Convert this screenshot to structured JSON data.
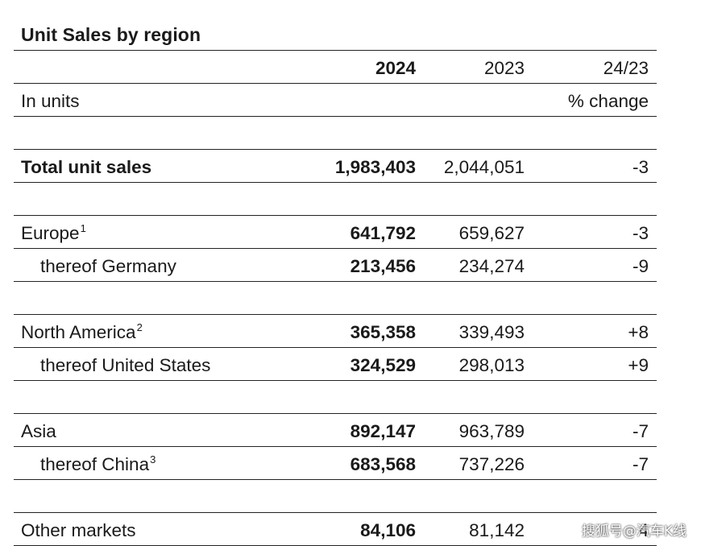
{
  "title": "Unit Sales by region",
  "header": {
    "col_2024": "2024",
    "col_2023": "2023",
    "col_change": "24/23",
    "units_label": "In units",
    "change_label": "% change"
  },
  "rows": [
    {
      "label": "Total unit sales",
      "v2024": "1,983,403",
      "v2023": "2,044,051",
      "change": "-3",
      "sup": ""
    },
    {
      "label": "Europe",
      "sup": "1",
      "v2024": "641,792",
      "v2023": "659,627",
      "change": "-3"
    },
    {
      "label": "thereof Germany",
      "sup": "",
      "v2024": "213,456",
      "v2023": "234,274",
      "change": "-9"
    },
    {
      "label": "North America",
      "sup": "2",
      "v2024": "365,358",
      "v2023": "339,493",
      "change": "+8"
    },
    {
      "label": "thereof United States",
      "sup": "",
      "v2024": "324,529",
      "v2023": "298,013",
      "change": "+9"
    },
    {
      "label": "Asia",
      "sup": "",
      "v2024": "892,147",
      "v2023": "963,789",
      "change": "-7"
    },
    {
      "label": "thereof China",
      "sup": "3",
      "v2024": "683,568",
      "v2023": "737,226",
      "change": "-7"
    },
    {
      "label": "Other markets",
      "sup": "",
      "v2024": "84,106",
      "v2023": "81,142",
      "change": "4"
    }
  ],
  "watermark": "搜狐号@汽车K线"
}
